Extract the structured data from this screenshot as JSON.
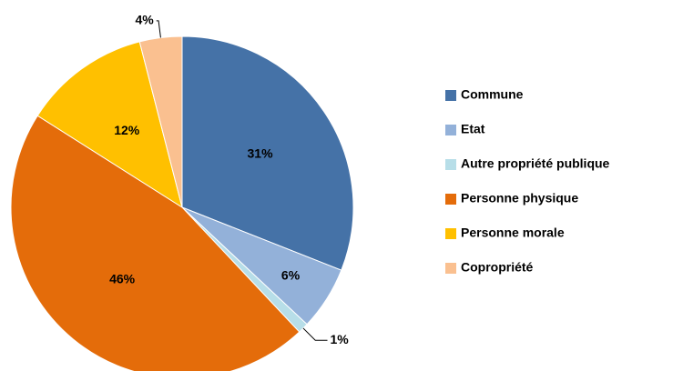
{
  "chart_data": {
    "type": "pie",
    "categories": [
      "Commune",
      "Etat",
      "Autre propriété publique",
      "Personne physique",
      "Personne morale",
      "Copropriété"
    ],
    "values": [
      31,
      6,
      1,
      46,
      12,
      4
    ],
    "value_labels": [
      "31%",
      "6%",
      "1%",
      "46%",
      "12%",
      "4%"
    ],
    "colors": [
      "#4572a7",
      "#93b1d9",
      "#b7dee8",
      "#e46c0a",
      "#ffc000",
      "#fac090"
    ],
    "legend": "right"
  }
}
